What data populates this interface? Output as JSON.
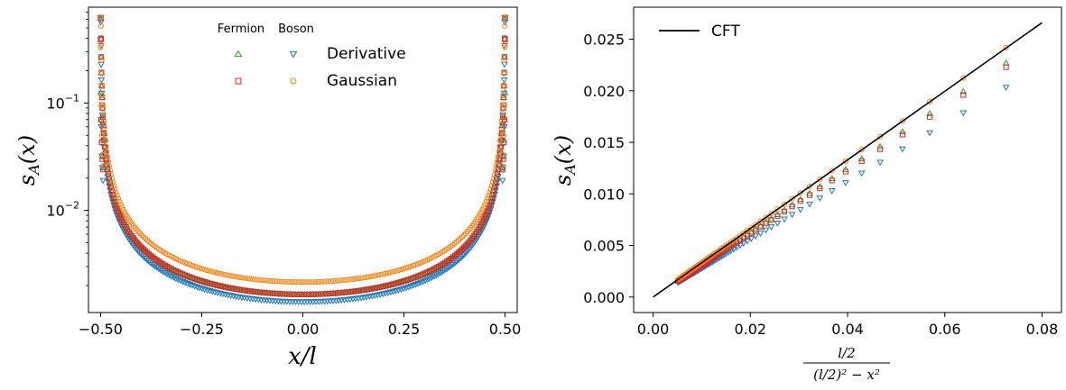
{
  "chart_data": [
    {
      "type": "scatter",
      "title": "",
      "xlabel": "x/l",
      "ylabel": "s_A(x)",
      "yscale": "log",
      "xlim": [
        -0.53,
        0.53
      ],
      "ylim": [
        0.00112,
        0.78
      ],
      "x_ticks": [
        -0.5,
        -0.25,
        0.0,
        0.25,
        0.5
      ],
      "x_tick_labels": [
        "−0.50",
        "−0.25",
        "0.00",
        "0.25",
        "0.50"
      ],
      "y_ticks": [
        0.01,
        0.1
      ],
      "y_tick_labels": {
        "base": "10",
        "exponents": [
          "−2",
          "−1"
        ]
      },
      "legend": {
        "placement": "top-center",
        "column_headers": [
          "Fermion",
          "Boson"
        ],
        "row_labels": [
          "Derivative",
          "Gaussian"
        ]
      },
      "series": [
        {
          "name": "Derivative",
          "group": "Fermion",
          "color": "#2ca02c",
          "marker": "triangle-up",
          "center_value": 0.00165,
          "edge_values": [
            0.125,
            0.07,
            0.045,
            0.032,
            0.025
          ]
        },
        {
          "name": "Derivative",
          "group": "Boson",
          "color": "#1f77b4",
          "marker": "triangle-down",
          "center_value": 0.00141,
          "edge_values": [
            0.6,
            0.06,
            0.032,
            0.025,
            0.019
          ]
        },
        {
          "name": "Gaussian",
          "group": "Fermion",
          "color": "#d62728",
          "marker": "square",
          "center_value": 0.00165,
          "edge_values": [
            0.39,
            0.07,
            0.043,
            0.03,
            0.024
          ]
        },
        {
          "name": "Gaussian",
          "group": "Boson",
          "color": "#ff7f0e",
          "marker": "circle",
          "center_value": 0.00215,
          "edge_values": [
            0.33,
            0.095,
            0.05,
            0.033,
            0.026
          ]
        }
      ]
    },
    {
      "type": "scatter",
      "title": "",
      "xlabel_numerator": "l/2",
      "xlabel_denominator": "(l/2)² − x²",
      "ylabel": "s_A(x)",
      "xlim": [
        -0.004,
        0.084
      ],
      "ylim": [
        -0.0015,
        0.0281
      ],
      "x_ticks": [
        0.0,
        0.02,
        0.04,
        0.06,
        0.08
      ],
      "x_tick_labels": [
        "0.00",
        "0.02",
        "0.04",
        "0.06",
        "0.08"
      ],
      "y_ticks": [
        0.0,
        0.005,
        0.01,
        0.015,
        0.02,
        0.025
      ],
      "y_tick_labels": [
        "0.000",
        "0.005",
        "0.010",
        "0.015",
        "0.020",
        "0.025"
      ],
      "legend": {
        "placement": "top-left",
        "label": "CFT"
      },
      "cft_line": {
        "label": "CFT",
        "color": "#000000",
        "x": [
          0.0,
          0.08
        ],
        "y": [
          0.0,
          0.0266
        ]
      },
      "x_values": [
        0.0726,
        0.0638,
        0.0569,
        0.0513,
        0.0467,
        0.0429,
        0.0396,
        0.0368,
        0.0343,
        0.0322,
        0.0303,
        0.0286,
        0.027,
        0.0256,
        0.0243,
        0.0232,
        0.0221,
        0.0211,
        0.0202,
        0.0194,
        0.0186,
        0.0179,
        0.0172,
        0.0166,
        0.016,
        0.0155,
        0.015,
        0.0145,
        0.0141,
        0.0137,
        0.0133,
        0.0129,
        0.0125,
        0.0122,
        0.0119,
        0.0116,
        0.0113,
        0.011,
        0.0107,
        0.0105,
        0.0102,
        0.01,
        0.0098,
        0.0095,
        0.0093,
        0.0091,
        0.0089,
        0.0087,
        0.0085,
        0.0083,
        0.0081,
        0.0079,
        0.0077,
        0.0075,
        0.0073,
        0.0071,
        0.0069,
        0.0067,
        0.0065,
        0.0063,
        0.0061,
        0.0059,
        0.0057,
        0.0055,
        0.0053,
        0.0051
      ],
      "series": [
        {
          "name": "Derivative",
          "group": "Fermion",
          "color": "#2ca02c",
          "marker": "triangle-up",
          "slope": 0.3125
        },
        {
          "name": "Derivative",
          "group": "Boson",
          "color": "#1f77b4",
          "marker": "triangle-down",
          "slope": 0.28
        },
        {
          "name": "Gaussian",
          "group": "Fermion",
          "color": "#d62728",
          "marker": "square",
          "slope": 0.307
        },
        {
          "name": "Gaussian",
          "group": "Boson",
          "color": "#ff7f0e",
          "marker": "circle",
          "slope": 0.333
        }
      ]
    }
  ]
}
